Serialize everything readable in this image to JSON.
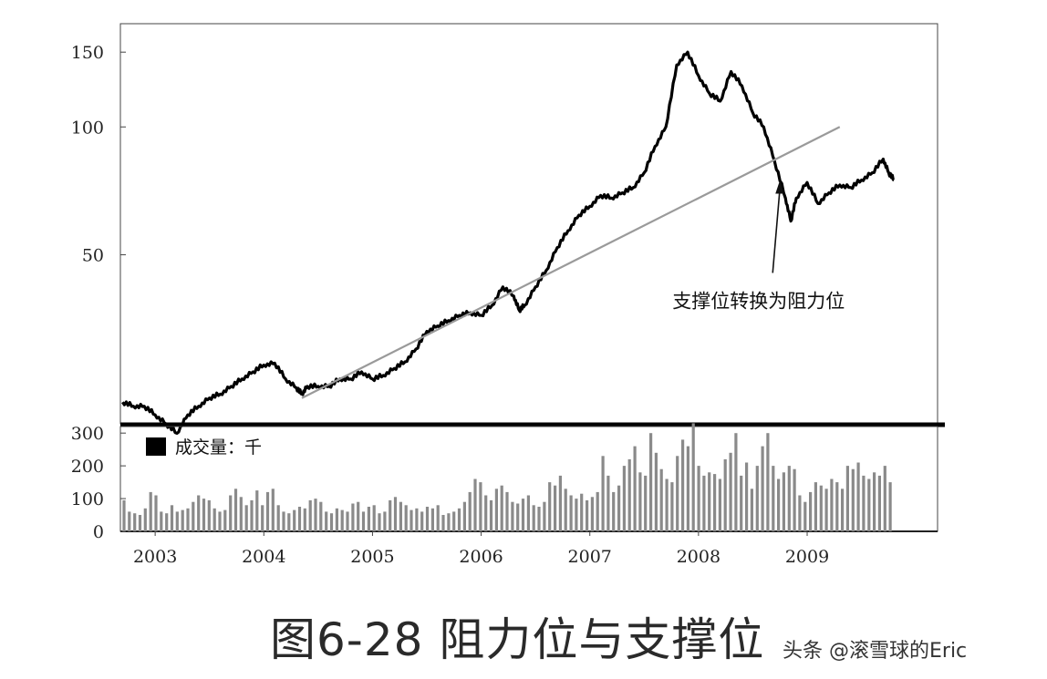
{
  "figure": {
    "caption": "图6-28 阻力位与支撑位",
    "watermark": "头条 @滚雪球的Eric"
  },
  "chart_data": [
    {
      "type": "line",
      "panel": "price",
      "scale": "log",
      "grid": false,
      "ylim": [
        20,
        175
      ],
      "yticks": [
        50,
        100,
        150
      ],
      "x_range": [
        2002.68,
        2010.2
      ],
      "series": [
        {
          "x": [
            2002.7,
            2002.8,
            2002.9,
            2003.0,
            2003.1,
            2003.2,
            2003.3,
            2003.4,
            2003.5,
            2003.6,
            2003.7,
            2003.8,
            2003.9,
            2004.0,
            2004.1,
            2004.2,
            2004.3,
            2004.35,
            2004.4,
            2004.5,
            2004.6,
            2004.7,
            2004.8,
            2004.9,
            2005.0,
            2005.1,
            2005.2,
            2005.3,
            2005.4,
            2005.5,
            2005.6,
            2005.7,
            2005.8,
            2005.9,
            2006.0,
            2006.1,
            2006.2,
            2006.3,
            2006.35,
            2006.4,
            2006.5,
            2006.6,
            2006.7,
            2006.8,
            2006.9,
            2007.0,
            2007.1,
            2007.2,
            2007.3,
            2007.4,
            2007.5,
            2007.6,
            2007.7,
            2007.8,
            2007.9,
            2008.0,
            2008.1,
            2008.2,
            2008.3,
            2008.4,
            2008.5,
            2008.6,
            2008.7,
            2008.8,
            2008.85,
            2008.9,
            2009.0,
            2009.1,
            2009.2,
            2009.3,
            2009.4,
            2009.5,
            2009.6,
            2009.7,
            2009.75,
            2009.8
          ],
          "values": [
            22.5,
            22.0,
            22.0,
            21.0,
            20.0,
            19.0,
            21.0,
            22.0,
            23.0,
            23.5,
            24.5,
            25.5,
            26.5,
            27.5,
            27.8,
            25.5,
            24.3,
            23.5,
            24.5,
            24.5,
            24.5,
            25.5,
            25.5,
            26.5,
            25.5,
            26.0,
            27.0,
            28.0,
            30.0,
            33.0,
            34.0,
            35.0,
            36.0,
            36.5,
            36.0,
            38.0,
            42.0,
            40.0,
            37.0,
            38.0,
            42.0,
            46.0,
            52.0,
            57.0,
            62.0,
            65.0,
            69.0,
            68.0,
            70.0,
            72.0,
            78.0,
            90.0,
            100.0,
            140.0,
            150.0,
            132.0,
            120.0,
            115.0,
            135.0,
            125.0,
            108.0,
            100.0,
            83.0,
            68.0,
            60.0,
            68.0,
            74.0,
            66.0,
            70.0,
            73.0,
            72.0,
            75.0,
            78.0,
            84.0,
            78.0,
            75.0
          ]
        },
        {
          "x": [
            2004.35,
            2009.3
          ],
          "values": [
            23.0,
            100.0
          ]
        }
      ],
      "annotations": [
        {
          "text": "支撑位转换为阻力位",
          "x": 2008.75,
          "y": 75
        }
      ]
    },
    {
      "type": "bar",
      "panel": "volume",
      "ylim": [
        0,
        320
      ],
      "yticks": [
        0,
        100,
        200,
        300
      ],
      "x_range": [
        2002.68,
        2010.2
      ],
      "xticks": [
        "2003",
        "2004",
        "2005",
        "2006",
        "2007",
        "2008",
        "2009"
      ],
      "legend_label": "成交量：千",
      "values": [
        95,
        60,
        55,
        50,
        70,
        120,
        110,
        60,
        55,
        80,
        60,
        65,
        70,
        90,
        110,
        100,
        95,
        70,
        60,
        65,
        110,
        130,
        105,
        80,
        95,
        125,
        80,
        120,
        130,
        80,
        60,
        55,
        65,
        75,
        70,
        95,
        100,
        90,
        60,
        55,
        70,
        65,
        60,
        85,
        90,
        60,
        75,
        80,
        55,
        60,
        95,
        105,
        90,
        80,
        65,
        70,
        60,
        75,
        70,
        80,
        50,
        55,
        60,
        70,
        90,
        120,
        160,
        150,
        110,
        95,
        130,
        140,
        120,
        90,
        85,
        100,
        110,
        80,
        75,
        90,
        150,
        140,
        170,
        130,
        110,
        100,
        115,
        95,
        105,
        120,
        230,
        170,
        120,
        140,
        200,
        220,
        260,
        180,
        170,
        300,
        240,
        190,
        160,
        150,
        230,
        280,
        260,
        330,
        200,
        170,
        180,
        175,
        160,
        220,
        240,
        300,
        170,
        210,
        130,
        200,
        260,
        300,
        200,
        160,
        180,
        200,
        190,
        110,
        90,
        120,
        150,
        140,
        130,
        160,
        150,
        130,
        200,
        190,
        210,
        170,
        160,
        180,
        170,
        200,
        150
      ]
    }
  ]
}
